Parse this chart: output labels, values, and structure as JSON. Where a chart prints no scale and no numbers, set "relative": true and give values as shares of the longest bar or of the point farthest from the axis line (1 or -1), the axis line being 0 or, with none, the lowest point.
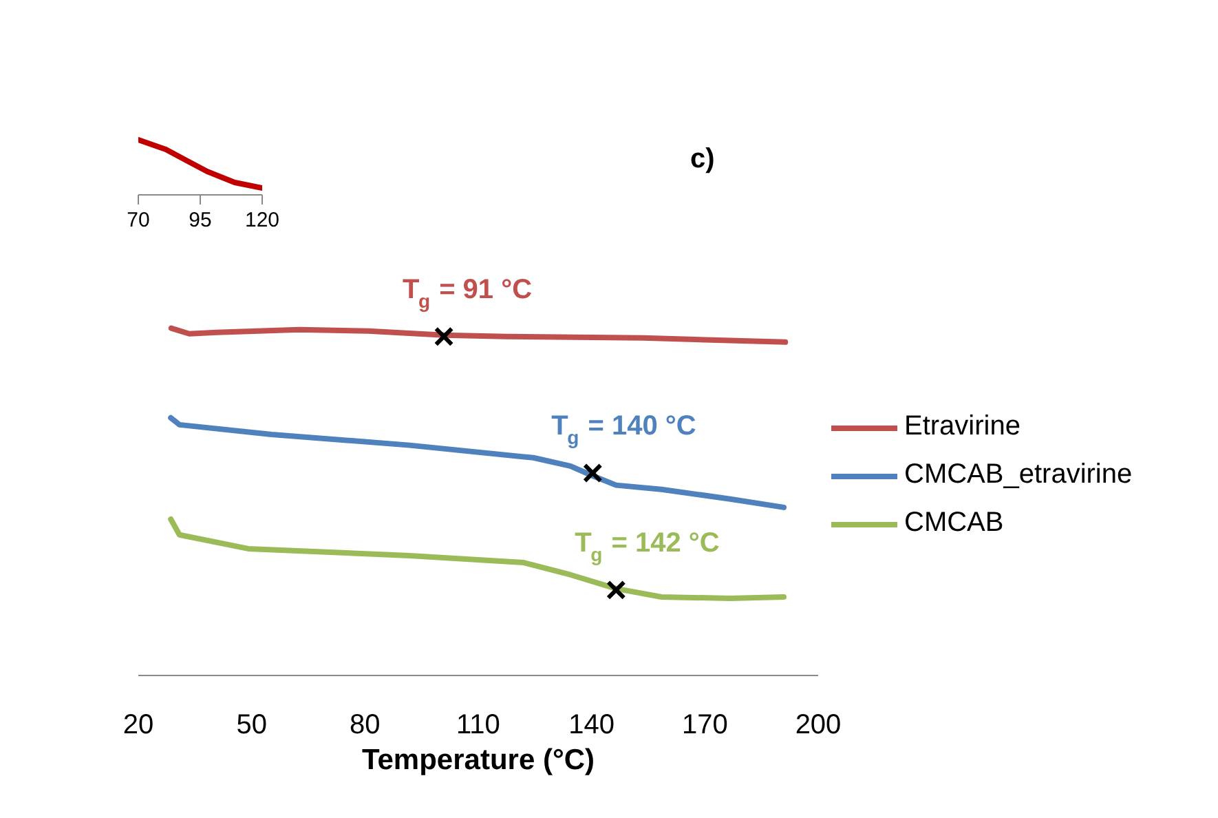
{
  "chart_data": [
    {
      "type": "line",
      "title": "c)",
      "xlabel": "Temperature (°C)",
      "relative": true,
      "xlim": [
        20,
        200
      ],
      "xticks": [
        20,
        50,
        80,
        110,
        140,
        170,
        200
      ],
      "tick_labels": "x",
      "grid": false,
      "legend": "right",
      "line_style": "solid",
      "series": [
        {
          "name": "Etravirine",
          "color": "#c0504d",
          "x": [
            28.7,
            33.5,
            40.8,
            62.6,
            80.9,
            100.9,
            117.3,
            153.7,
            191.3
          ],
          "values": [
            1.0,
            0.984,
            0.988,
            0.996,
            0.992,
            0.98,
            0.976,
            0.972,
            0.96
          ]
        },
        {
          "name": "CMCAB_etravirine",
          "color": "#4f81bd",
          "x": [
            28.6,
            30.9,
            55.3,
            91.8,
            124.6,
            134.4,
            140.3,
            146.5,
            158.5,
            176.7,
            190.9
          ],
          "values": [
            0.742,
            0.722,
            0.694,
            0.663,
            0.627,
            0.603,
            0.575,
            0.548,
            0.536,
            0.508,
            0.484
          ]
        },
        {
          "name": "CMCAB",
          "color": "#9bbb59",
          "x": [
            28.6,
            30.9,
            49.1,
            91.8,
            122.0,
            134.4,
            146.5,
            158.5,
            176.7,
            190.9
          ],
          "values": [
            0.45,
            0.405,
            0.365,
            0.345,
            0.325,
            0.29,
            0.25,
            0.226,
            0.222,
            0.226
          ]
        },
        {
          "type": "scatter",
          "marker": "cross",
          "color": "#000000",
          "x": [
            100.9,
            140.3,
            146.5
          ],
          "values": [
            0.976,
            0.583,
            0.246
          ]
        }
      ],
      "annotations": [
        {
          "text": "T$_{g}$ = 91 °C",
          "x": 100.9,
          "y": 0.976
        },
        {
          "text": "T$_{g}$ = 140 °C",
          "x": 140.3,
          "y": 0.583
        },
        {
          "text": "T$_{g}$ = 142 °C",
          "x": 146.5,
          "y": 0.246
        }
      ]
    },
    {
      "type": "line",
      "relative": true,
      "xlim": [
        70,
        120
      ],
      "xticks": [
        70,
        95,
        120
      ],
      "tick_labels": "x",
      "grid": false,
      "series": [
        {
          "color": "#c00000",
          "x": [
            70,
            81.1,
            89.4,
            97.8,
            108.9,
            120
          ],
          "values": [
            1.0,
            0.825,
            0.625,
            0.425,
            0.225,
            0.125
          ]
        }
      ]
    }
  ]
}
